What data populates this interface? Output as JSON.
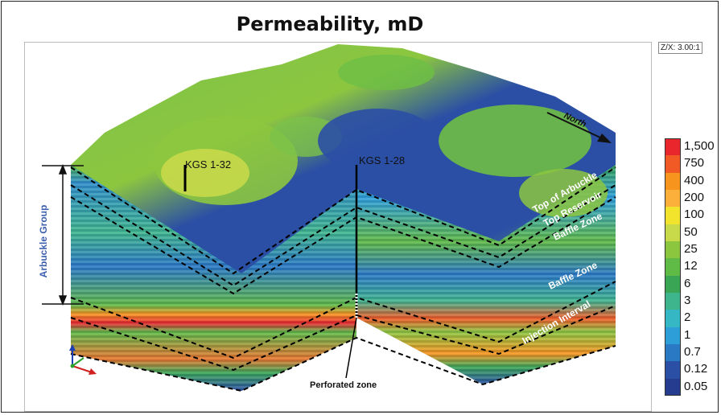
{
  "title": "Permeability, mD",
  "vertical_exaggeration": "Z/X: 3.00:1",
  "north_label": "North",
  "group_label": "Arbuckle Group",
  "wells": [
    {
      "name": "KGS 1-32"
    },
    {
      "name": "KGS 1-28"
    }
  ],
  "perforation_label": "Perforated zone",
  "zone_labels": [
    "Top of Arbuckle",
    "Top Reservoir",
    "Baffle Zone",
    "Baffle Zone",
    "Injection Interval"
  ],
  "legend": {
    "entries": [
      {
        "label": "1,500",
        "color": "#e8262c"
      },
      {
        "label": "750",
        "color": "#f15a24"
      },
      {
        "label": "400",
        "color": "#f7941d"
      },
      {
        "label": "200",
        "color": "#fbb03b"
      },
      {
        "label": "100",
        "color": "#f2e32c"
      },
      {
        "label": "50",
        "color": "#c8d94a"
      },
      {
        "label": "25",
        "color": "#8cc63f"
      },
      {
        "label": "12",
        "color": "#5fba46"
      },
      {
        "label": "6",
        "color": "#3aa655"
      },
      {
        "label": "3",
        "color": "#3fb58d"
      },
      {
        "label": "2",
        "color": "#35b8c4"
      },
      {
        "label": "1",
        "color": "#2e9ed8"
      },
      {
        "label": "0.7",
        "color": "#2a79c4"
      },
      {
        "label": "0.12",
        "color": "#2b4fa5"
      },
      {
        "label": "0.05",
        "color": "#263c8e"
      }
    ]
  },
  "colors": {
    "surface_green": "#6fbe45",
    "surface_blue": "#2b4fa5",
    "injection_red": "#e8262c",
    "label_blue": "#3d5fae"
  }
}
